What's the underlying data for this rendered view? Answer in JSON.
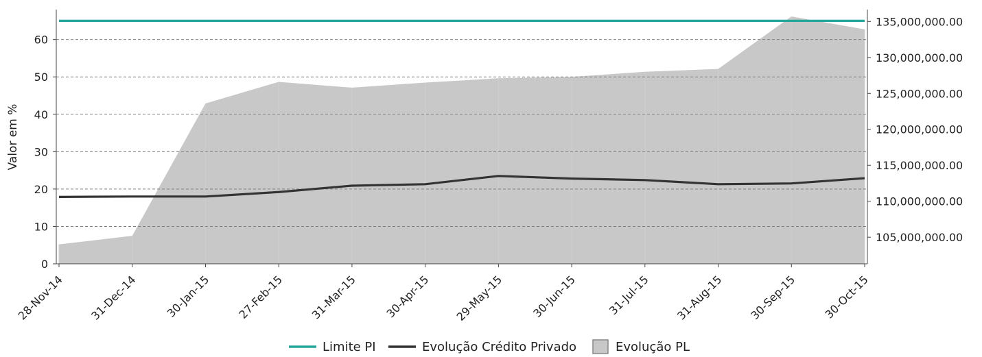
{
  "chart_data": {
    "type": "line",
    "categories": [
      "28-Nov-14",
      "31-Dec-14",
      "30-Jan-15",
      "27-Feb-15",
      "31-Mar-15",
      "30-Apr-15",
      "29-May-15",
      "30-Jun-15",
      "31-Jul-15",
      "31-Aug-15",
      "30-Sep-15",
      "30-Oct-15"
    ],
    "ylabel_left": "Valor em %",
    "ylim_left": [
      0,
      68
    ],
    "yticks_left": [
      0,
      10,
      20,
      30,
      40,
      50,
      60
    ],
    "ylim_right": [
      101300000,
      136650000
    ],
    "yticks_right": [
      105000000,
      110000000,
      115000000,
      120000000,
      125000000,
      130000000,
      135000000
    ],
    "ytick_labels_right": [
      "105,000,000.00",
      "110,000,000.00",
      "115,000,000.00",
      "120,000,000.00",
      "125,000,000.00",
      "130,000,000.00",
      "135,000,000.00"
    ],
    "grid": "horizontal dashed at left-axis ticks",
    "legend_position": "bottom-center",
    "series": [
      {
        "name": "Limite PI",
        "kind": "line",
        "axis": "left",
        "color": "#26a69a",
        "values": [
          65,
          65,
          65,
          65,
          65,
          65,
          65,
          65,
          65,
          65,
          65,
          65
        ]
      },
      {
        "name": "Evolução Crédito Privado",
        "kind": "line",
        "axis": "left",
        "color": "#333333",
        "values": [
          17.9,
          18.0,
          18.0,
          19.2,
          20.9,
          21.3,
          23.5,
          22.8,
          22.4,
          21.3,
          21.5,
          22.9
        ]
      },
      {
        "name": "Evolução PL",
        "kind": "area",
        "axis": "right",
        "color": "#c8c8c8",
        "values": [
          104000000,
          105200000,
          123600000,
          126600000,
          125800000,
          126500000,
          127100000,
          127300000,
          128000000,
          128400000,
          135700000,
          133900000
        ]
      }
    ]
  }
}
